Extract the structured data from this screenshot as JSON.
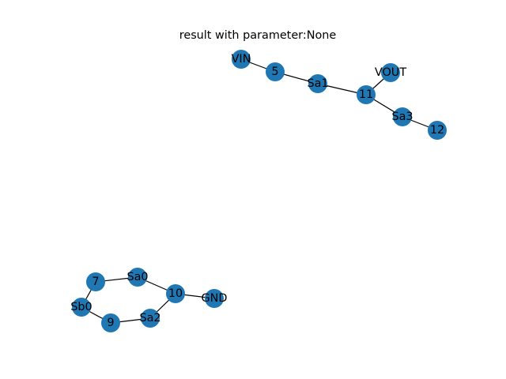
{
  "title": "result with parameter:None",
  "node_color": "#1f77b4",
  "edge_color": "#000000",
  "nodes": [
    {
      "id": "VIN",
      "label": "VIN"
    },
    {
      "id": "5",
      "label": "5"
    },
    {
      "id": "Sa1",
      "label": "Sa1"
    },
    {
      "id": "11",
      "label": "11"
    },
    {
      "id": "VOUT",
      "label": "VOUT"
    },
    {
      "id": "Sa3",
      "label": "Sa3"
    },
    {
      "id": "12",
      "label": "12"
    },
    {
      "id": "7",
      "label": "7"
    },
    {
      "id": "Sa0",
      "label": "Sa0"
    },
    {
      "id": "10",
      "label": "10"
    },
    {
      "id": "GND",
      "label": "GND"
    },
    {
      "id": "Sb0",
      "label": "Sb0"
    },
    {
      "id": "9",
      "label": "9"
    },
    {
      "id": "Sa2",
      "label": "Sa2"
    }
  ],
  "edges": [
    [
      "VIN",
      "5"
    ],
    [
      "5",
      "Sa1"
    ],
    [
      "Sa1",
      "11"
    ],
    [
      "11",
      "VOUT"
    ],
    [
      "11",
      "Sa3"
    ],
    [
      "Sa3",
      "12"
    ],
    [
      "7",
      "Sa0"
    ],
    [
      "Sa0",
      "10"
    ],
    [
      "10",
      "GND"
    ],
    [
      "10",
      "Sa2"
    ],
    [
      "Sa2",
      "9"
    ],
    [
      "9",
      "Sb0"
    ],
    [
      "Sb0",
      "7"
    ]
  ]
}
